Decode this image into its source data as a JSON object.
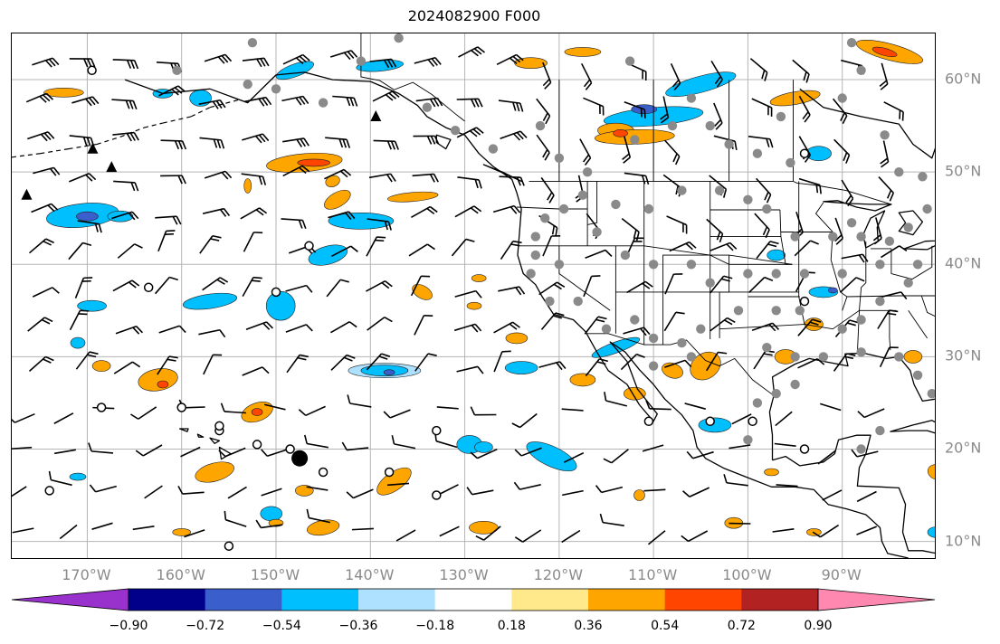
{
  "title": "2024082900 F000",
  "map": {
    "lon_range": [
      -178,
      -80
    ],
    "lat_range": [
      8,
      65
    ],
    "grid_lons": [
      -170,
      -160,
      -150,
      -140,
      -130,
      -120,
      -110,
      -100,
      -90
    ],
    "grid_lats": [
      10,
      20,
      30,
      40,
      50,
      60
    ],
    "lat_labels": [
      "60°N",
      "50°N",
      "40°N",
      "30°N",
      "20°N",
      "10°N"
    ],
    "lon_labels": [
      "170°W",
      "160°W",
      "150°W",
      "140°W",
      "130°W",
      "120°W",
      "110°W",
      "100°W",
      "90°W"
    ],
    "gridlines": "on",
    "features": [
      "coastlines",
      "country-borders",
      "us-state-borders",
      "wind-barbs",
      "station-markers",
      "filled-contours"
    ]
  },
  "colorbar": {
    "ticks": [
      "−0.90",
      "−0.72",
      "−0.54",
      "−0.36",
      "−0.18",
      "0.18",
      "0.36",
      "0.54",
      "0.72",
      "0.90"
    ],
    "colors": [
      "#9932cc",
      "#00008b",
      "#3a5fcd",
      "#00bfff",
      "#aee1ff",
      "#ffffff",
      "#ffe98a",
      "#ffa500",
      "#ff4500",
      "#b22222",
      "#ff88b0"
    ],
    "extend": "both"
  }
}
